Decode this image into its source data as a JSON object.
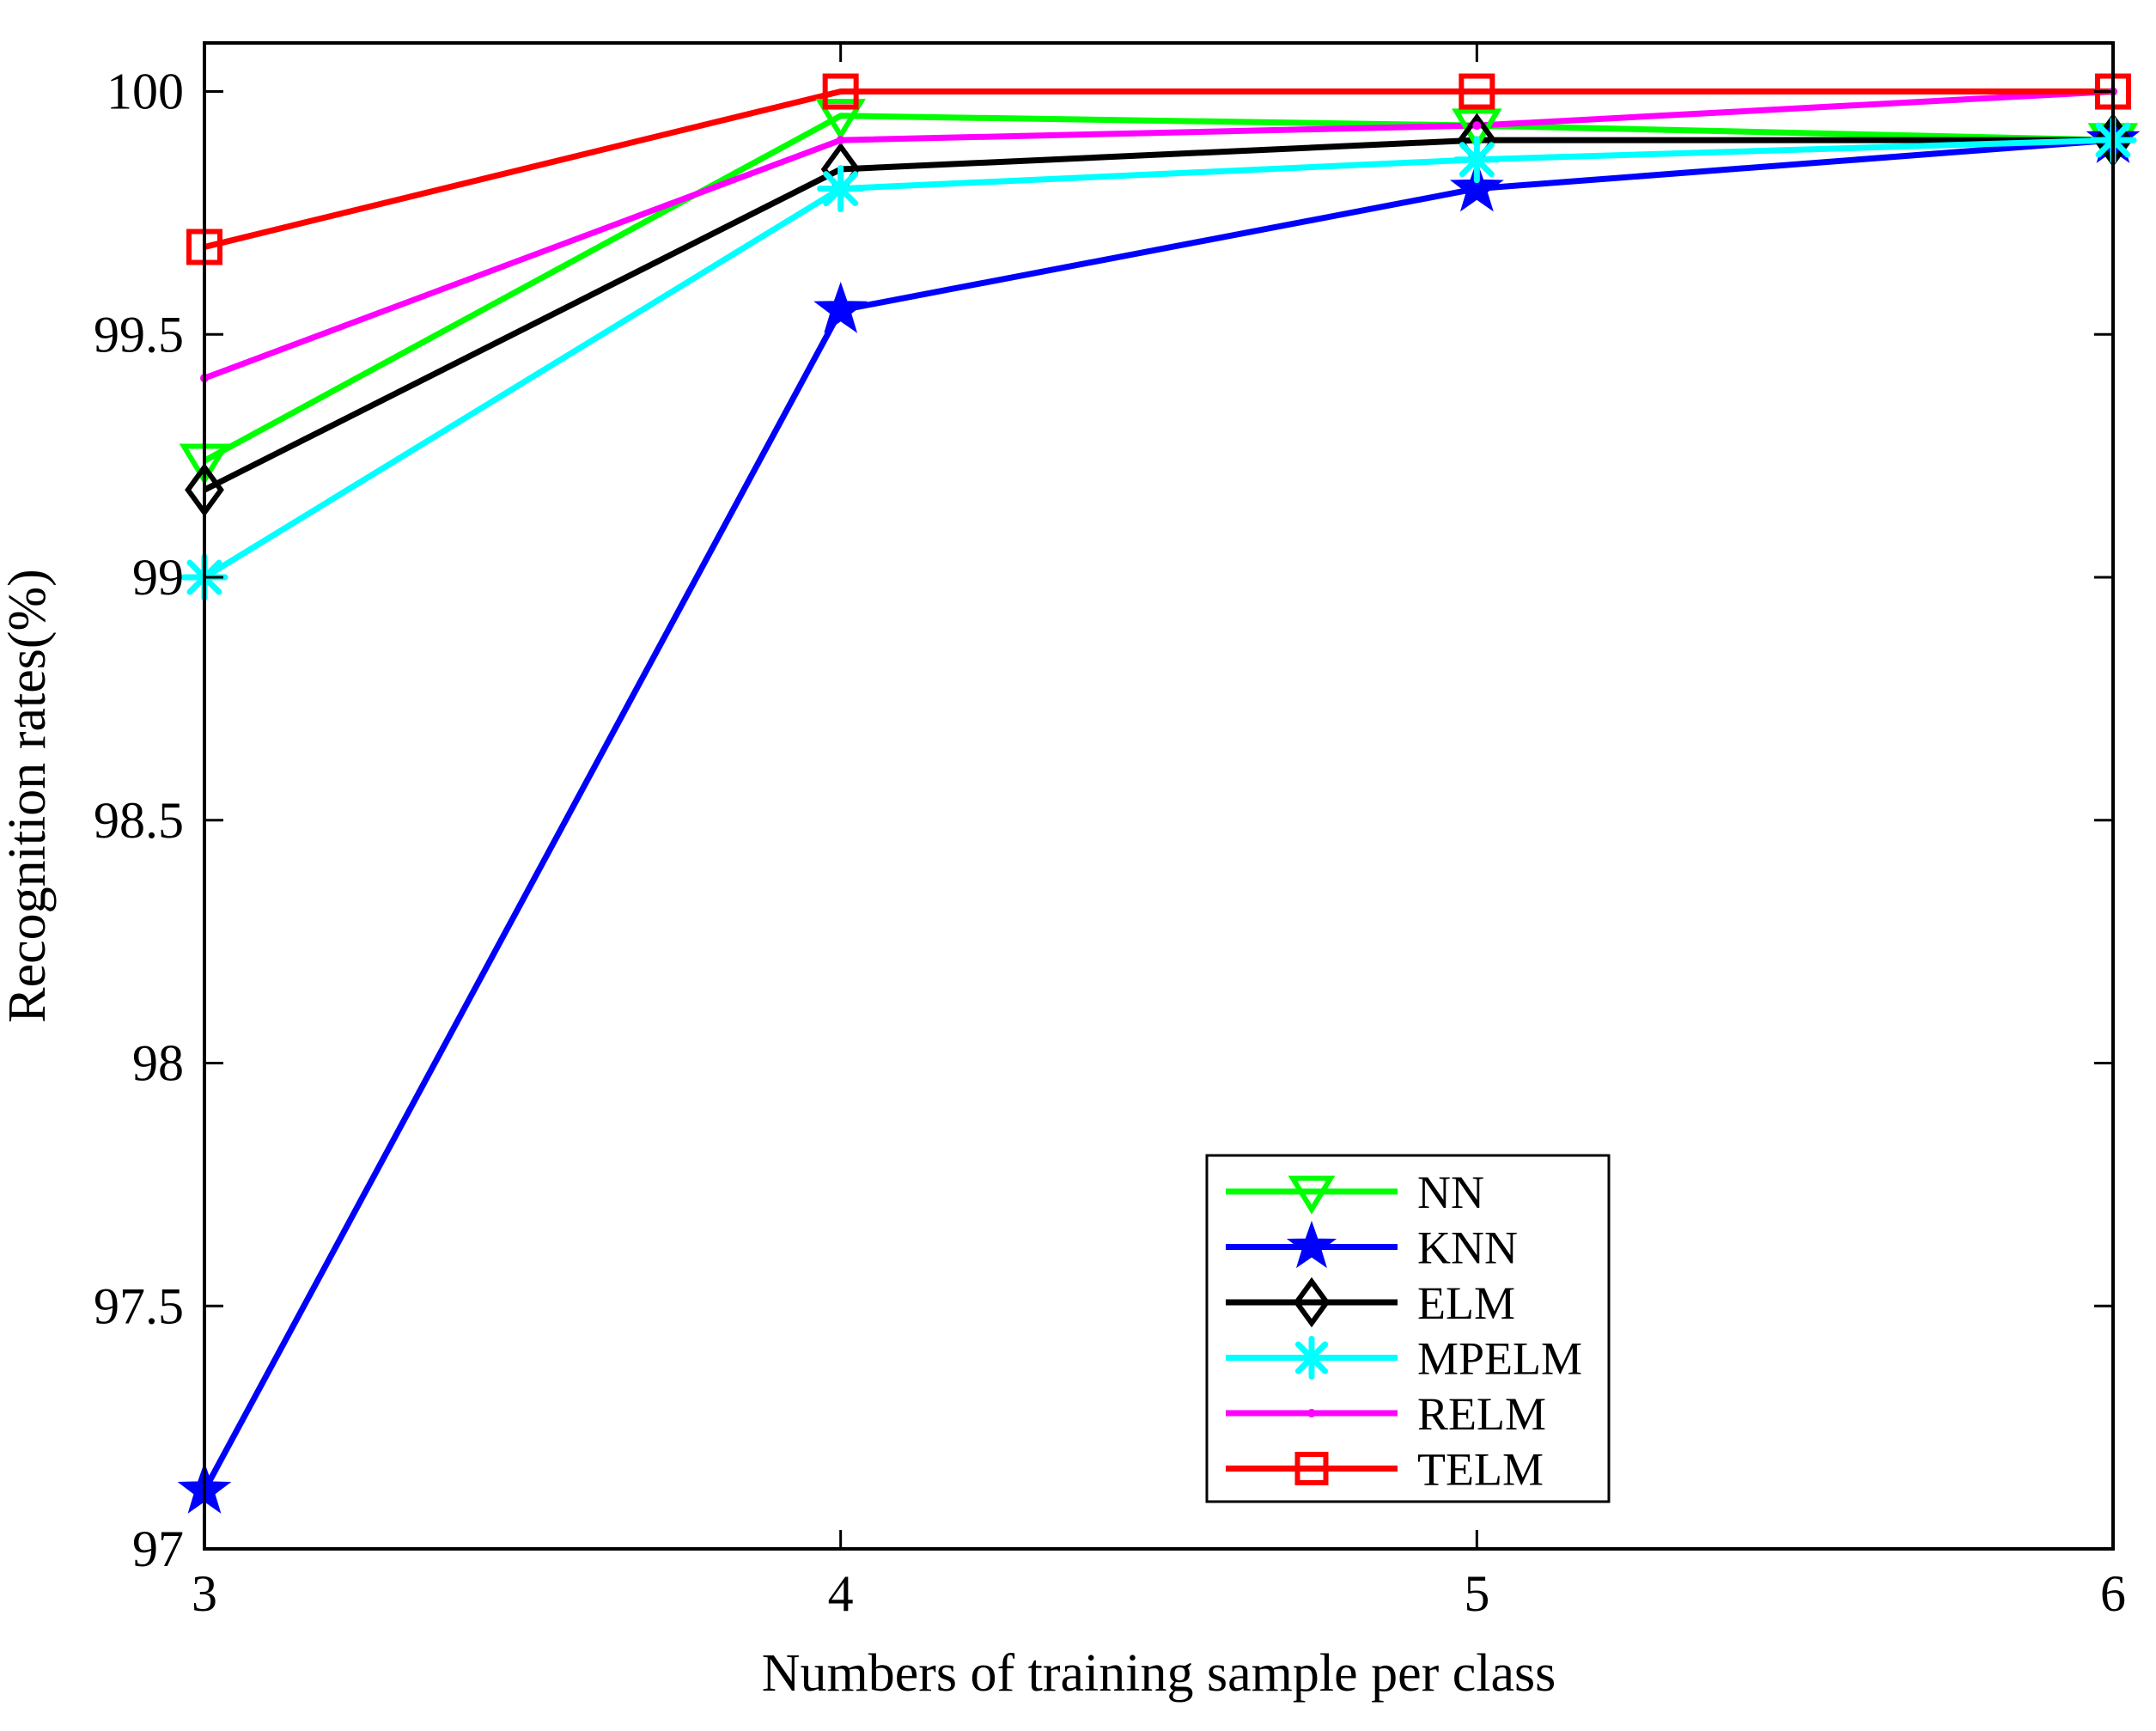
{
  "chart_data": {
    "type": "line",
    "title": "",
    "xlabel": "Numbers of training sample per class",
    "ylabel": "Recognition rates(%)",
    "x": [
      3,
      4,
      5,
      6
    ],
    "xlim": [
      3,
      6
    ],
    "ylim": [
      97,
      100.1
    ],
    "xticks": [
      3,
      4,
      5,
      6
    ],
    "yticks": [
      97,
      97.5,
      98,
      98.5,
      99,
      99.5,
      100
    ],
    "xtick_labels": [
      "3",
      "4",
      "5",
      "6"
    ],
    "ytick_labels": [
      "97",
      "97.5",
      "98",
      "98.5",
      "99",
      "99.5",
      "100"
    ],
    "grid": false,
    "legend_position": "bottom-right",
    "series": [
      {
        "name": "NN",
        "color": "#00ff00",
        "marker": "triangle-down",
        "values": [
          99.24,
          99.95,
          99.93,
          99.9
        ]
      },
      {
        "name": "KNN",
        "color": "#0000ff",
        "marker": "star",
        "values": [
          97.12,
          99.55,
          99.8,
          99.9
        ]
      },
      {
        "name": "ELM",
        "color": "#000000",
        "marker": "diamond",
        "values": [
          99.18,
          99.84,
          99.9,
          99.9
        ]
      },
      {
        "name": "MPELM",
        "color": "#00ffff",
        "marker": "asterisk",
        "values": [
          99.0,
          99.8,
          99.86,
          99.9
        ]
      },
      {
        "name": "RELM",
        "color": "#ff00ff",
        "marker": "dot",
        "values": [
          99.41,
          99.9,
          99.93,
          100.0
        ]
      },
      {
        "name": "TELM",
        "color": "#ff0000",
        "marker": "square",
        "values": [
          99.68,
          100.0,
          100.0,
          100.0
        ]
      }
    ]
  }
}
